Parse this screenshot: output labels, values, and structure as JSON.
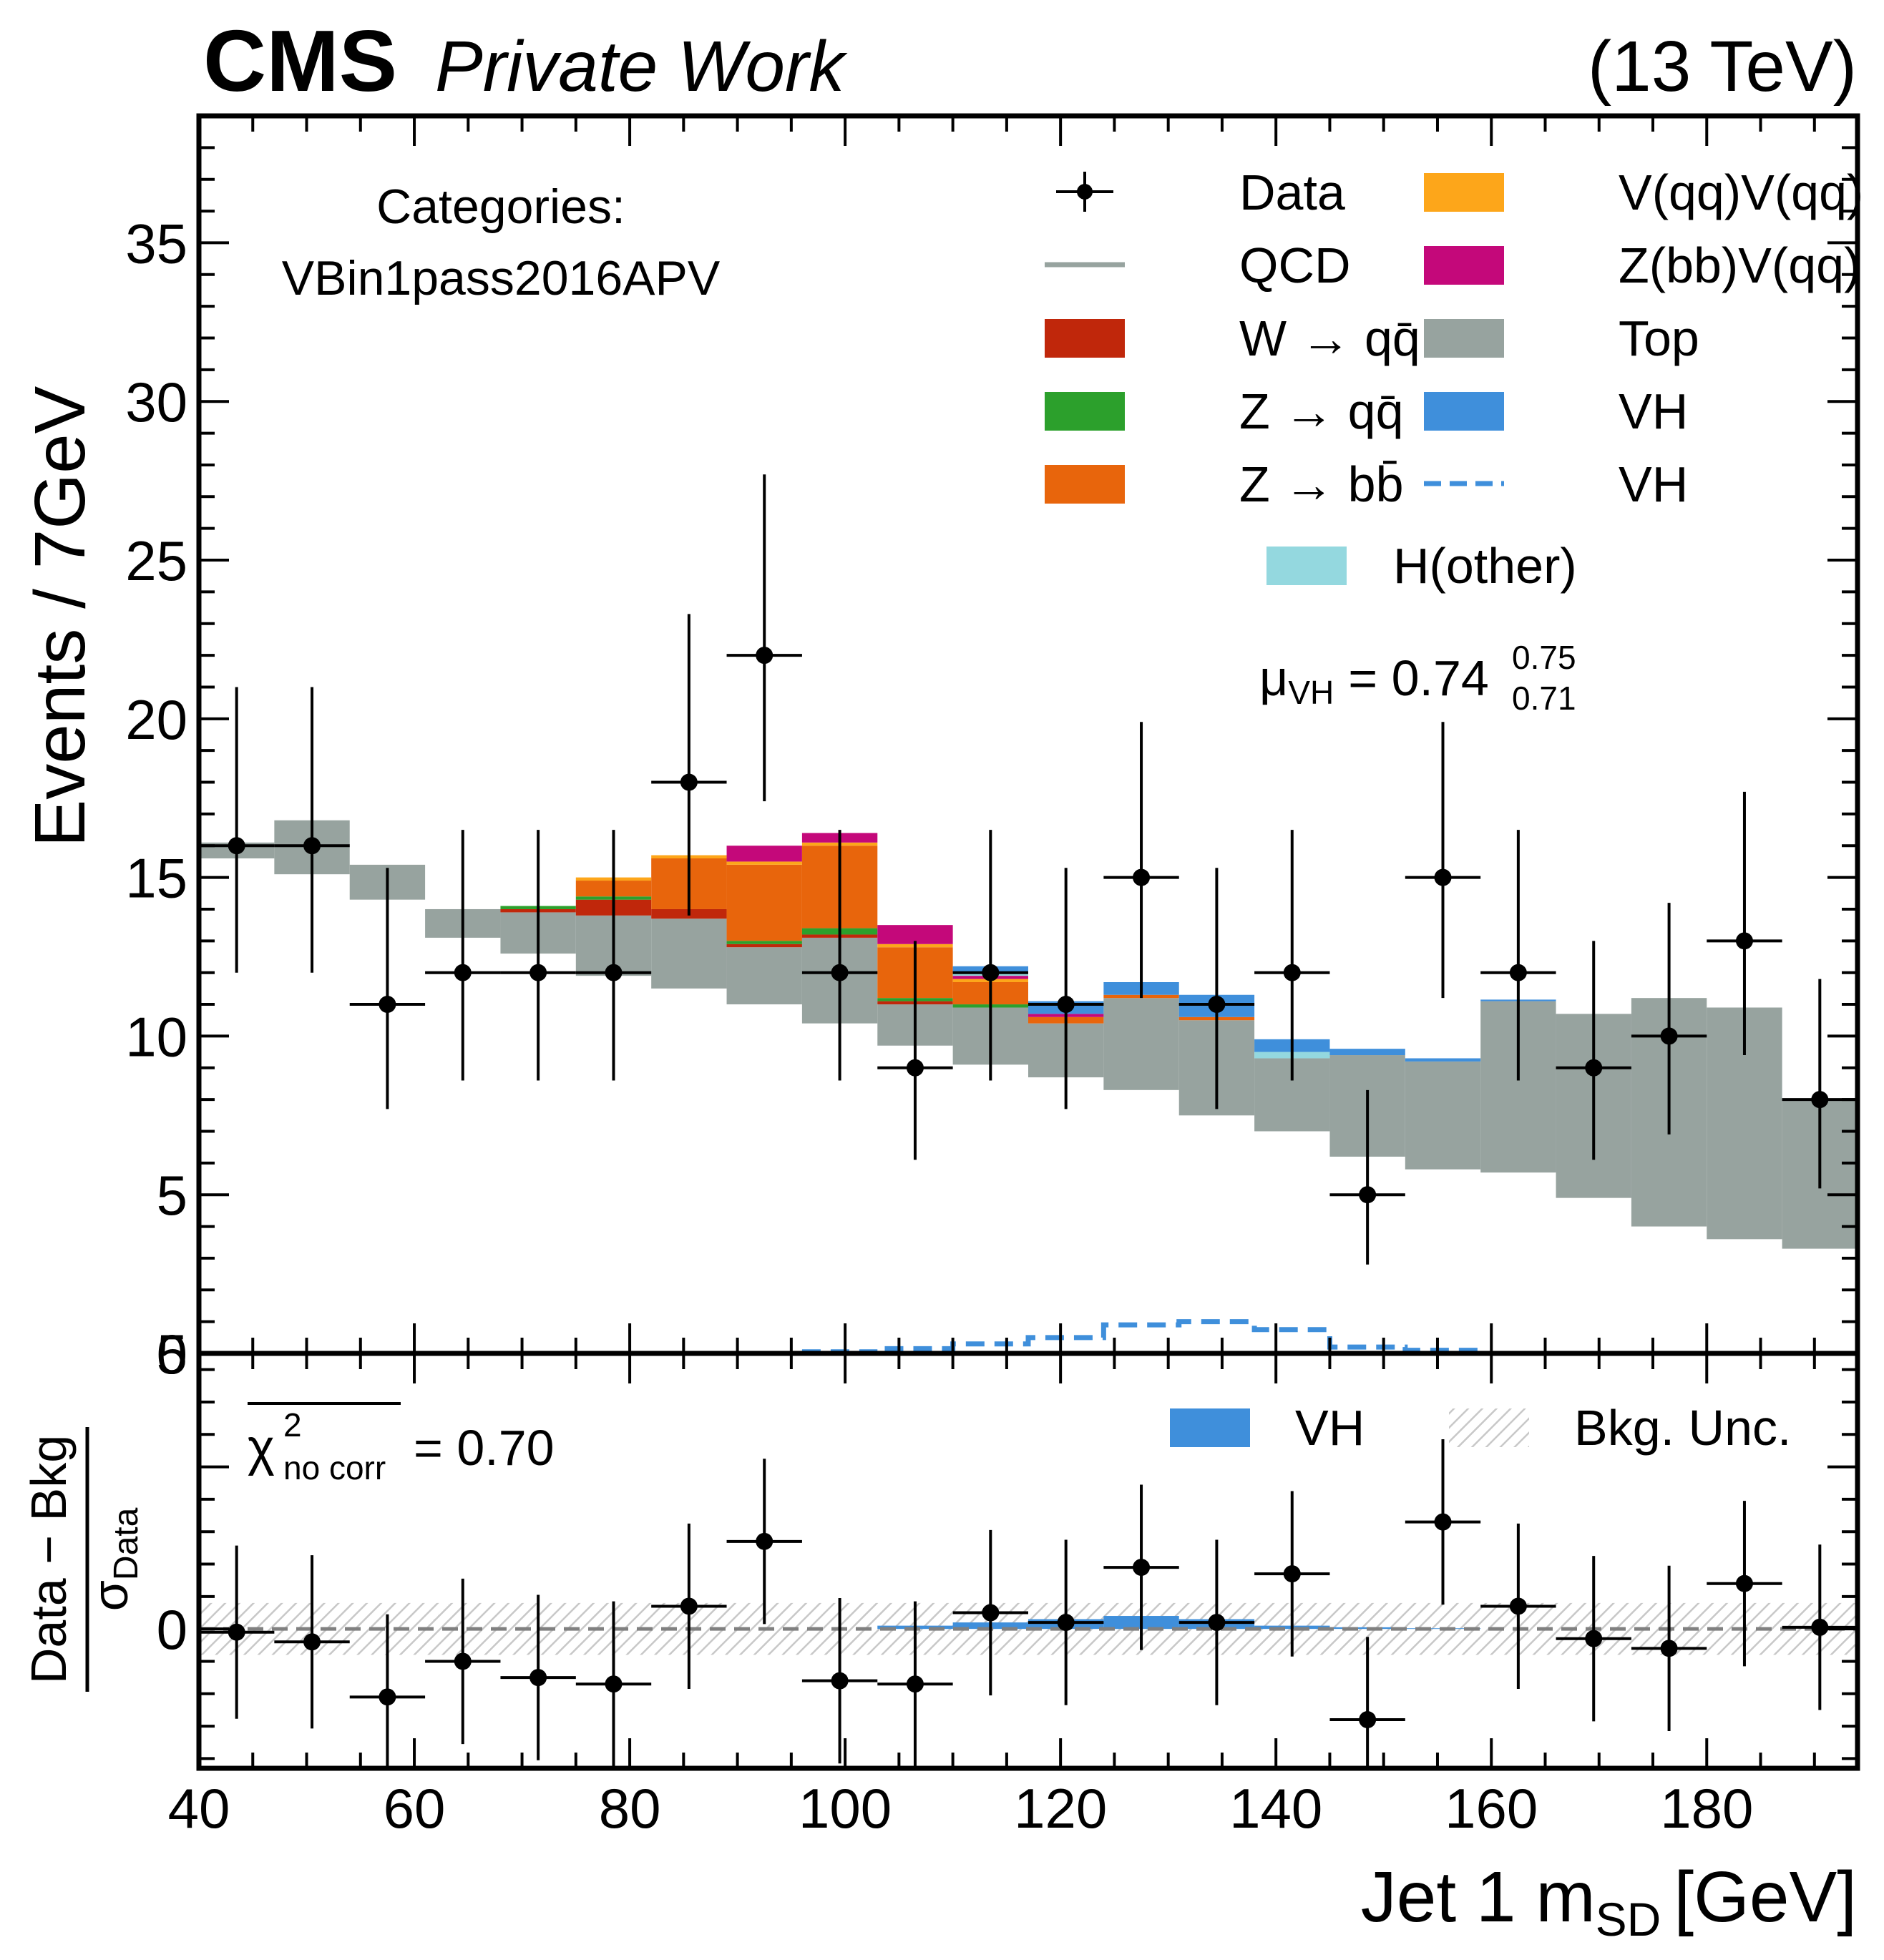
{
  "header": {
    "experiment": "CMS",
    "label": "Private Work",
    "energy": "(13 TeV)"
  },
  "colors": {
    "W_qq": "#c0270b",
    "Z_qq": "#2ca02c",
    "Z_bb": "#e8650c",
    "VqqVqq": "#fda61a",
    "ZbbVqq": "#c4087a",
    "Top": "#97a39f",
    "VH": "#3f8fdb",
    "Hother": "#94d8df",
    "QCD_line": "#97a39f",
    "data": "#000000"
  },
  "chart_data": {
    "type": "bar",
    "x_label": "Jet 1 m",
    "x_label_sub": "SD",
    "x_label_unit": "[GeV]",
    "y_label": "Events / 7GeV",
    "ratio_y_label_num": "Data − Bkg",
    "ratio_y_label_den": "σ",
    "ratio_y_label_den_sub": "Data",
    "xlim": [
      40,
      194
    ],
    "ylim": [
      0,
      39
    ],
    "ratio_ylim": [
      -4.3,
      8.5
    ],
    "x_ticks": [
      40,
      60,
      80,
      100,
      120,
      140,
      160,
      180
    ],
    "y_ticks": [
      0,
      5,
      10,
      15,
      20,
      25,
      30,
      35
    ],
    "ratio_y_ticks": [
      0,
      5
    ],
    "category_title": "Categories:",
    "category_name": "VBin1pass2016APV",
    "mu_label": "μ",
    "mu_sub": "VH",
    "mu_text": "= 0.74",
    "mu_up": "0.75",
    "mu_down": "0.71",
    "chi2_symbol": "χ",
    "chi2_sup": "2",
    "chi2_sub": "no corr",
    "chi2_text": "= 0.70",
    "legend": [
      {
        "key": "data",
        "label": "Data",
        "style": "errorbar"
      },
      {
        "key": "qcd",
        "label": "QCD",
        "style": "line"
      },
      {
        "key": "wqq",
        "label": "W → qq̄",
        "style": "patch"
      },
      {
        "key": "zqq",
        "label": "Z → qq̄",
        "style": "patch"
      },
      {
        "key": "zbb",
        "label": "Z → bb̄",
        "style": "patch"
      },
      {
        "key": "vqqvqq",
        "label": "V(qq)V(qq)",
        "style": "patch"
      },
      {
        "key": "zbbvqq",
        "label": "Z(bb)V(qq)",
        "style": "patch"
      },
      {
        "key": "top",
        "label": "Top",
        "style": "patch"
      },
      {
        "key": "vh",
        "label": "VH",
        "style": "patch"
      },
      {
        "key": "vh_line",
        "label": "VH",
        "style": "dashed"
      },
      {
        "key": "hother",
        "label": "H(other)",
        "style": "patch"
      }
    ],
    "ratio_legend": [
      {
        "key": "vh",
        "label": "VH",
        "style": "patch"
      },
      {
        "key": "bkgunc",
        "label": "Bkg. Unc.",
        "style": "hatch"
      }
    ],
    "bin_edges": [
      40,
      47,
      54,
      61,
      68,
      75,
      82,
      89,
      96,
      103,
      110,
      117,
      124,
      131,
      138,
      145,
      152,
      159,
      166,
      173,
      180,
      187,
      194
    ],
    "top_low": [
      15.6,
      15.1,
      14.3,
      13.1,
      12.6,
      11.9,
      11.5,
      11.0,
      10.4,
      9.7,
      9.1,
      8.7,
      8.3,
      7.5,
      7.0,
      6.2,
      5.8,
      5.7,
      4.9,
      4.0,
      3.6,
      3.3
    ],
    "top_high": [
      16.1,
      16.8,
      15.4,
      14.0,
      13.9,
      13.8,
      13.7,
      12.8,
      13.1,
      11.0,
      10.9,
      10.4,
      11.2,
      10.5,
      9.3,
      9.4,
      9.2,
      11.1,
      10.7,
      11.2,
      10.9,
      8.0
    ],
    "signal_stack": [
      {
        "bin": 4,
        "parts": [
          [
            "W_qq",
            0.1
          ],
          [
            "Z_qq",
            0.1
          ],
          [
            "Z_bb",
            0.0
          ],
          [
            "VqqVqq",
            0.0
          ],
          [
            "ZbbVqq",
            0.0
          ]
        ]
      },
      {
        "bin": 5,
        "parts": [
          [
            "W_qq",
            0.5
          ],
          [
            "Z_qq",
            0.1
          ],
          [
            "Z_bb",
            0.5
          ],
          [
            "VqqVqq",
            0.1
          ],
          [
            "ZbbVqq",
            0.0
          ]
        ]
      },
      {
        "bin": 6,
        "parts": [
          [
            "W_qq",
            0.3
          ],
          [
            "Z_qq",
            0.0
          ],
          [
            "Z_bb",
            1.6
          ],
          [
            "VqqVqq",
            0.1
          ],
          [
            "ZbbVqq",
            0.0
          ]
        ]
      },
      {
        "bin": 7,
        "parts": [
          [
            "W_qq",
            0.1
          ],
          [
            "Z_qq",
            0.1
          ],
          [
            "Z_bb",
            2.4
          ],
          [
            "VqqVqq",
            0.1
          ],
          [
            "ZbbVqq",
            0.5
          ]
        ]
      },
      {
        "bin": 8,
        "parts": [
          [
            "W_qq",
            0.1
          ],
          [
            "Z_qq",
            0.2
          ],
          [
            "Z_bb",
            2.6
          ],
          [
            "VqqVqq",
            0.1
          ],
          [
            "ZbbVqq",
            0.3
          ]
        ]
      },
      {
        "bin": 9,
        "parts": [
          [
            "W_qq",
            0.1
          ],
          [
            "Z_qq",
            0.1
          ],
          [
            "Z_bb",
            1.6
          ],
          [
            "VqqVqq",
            0.1
          ],
          [
            "ZbbVqq",
            0.6
          ]
        ]
      },
      {
        "bin": 10,
        "parts": [
          [
            "W_qq",
            0.0
          ],
          [
            "Z_qq",
            0.1
          ],
          [
            "Z_bb",
            0.7
          ],
          [
            "VqqVqq",
            0.1
          ],
          [
            "ZbbVqq",
            0.1
          ],
          [
            "Hother",
            0.1
          ],
          [
            "VH",
            0.2
          ]
        ]
      },
      {
        "bin": 11,
        "parts": [
          [
            "W_qq",
            0.0
          ],
          [
            "Z_qq",
            0.0
          ],
          [
            "Z_bb",
            0.2
          ],
          [
            "VqqVqq",
            0.0
          ],
          [
            "ZbbVqq",
            0.1
          ],
          [
            "VH",
            0.4
          ]
        ]
      },
      {
        "bin": 12,
        "parts": [
          [
            "Z_bb",
            0.1
          ],
          [
            "ZbbVqq",
            0.0
          ],
          [
            "VH",
            0.4
          ]
        ]
      },
      {
        "bin": 13,
        "parts": [
          [
            "Z_bb",
            0.1
          ],
          [
            "ZbbVqq",
            0.0
          ],
          [
            "VH",
            0.7
          ]
        ]
      },
      {
        "bin": 14,
        "parts": [
          [
            "Hother",
            0.2
          ],
          [
            "VH",
            0.4
          ]
        ]
      },
      {
        "bin": 15,
        "parts": [
          [
            "VH",
            0.2
          ]
        ]
      },
      {
        "bin": 16,
        "parts": [
          [
            "VH",
            0.1
          ]
        ]
      },
      {
        "bin": 17,
        "parts": [
          [
            "VH",
            0.05
          ]
        ]
      }
    ],
    "vh_dashed": [
      0,
      0,
      0,
      0,
      0,
      0,
      0,
      0,
      0.05,
      0.15,
      0.3,
      0.5,
      0.9,
      1.0,
      0.75,
      0.2,
      0.1,
      0,
      0,
      0,
      0,
      0
    ],
    "data_x": [
      43.5,
      50.5,
      57.5,
      64.5,
      71.5,
      78.5,
      85.5,
      92.5,
      99.5,
      106.5,
      113.5,
      120.5,
      127.5,
      134.5,
      141.5,
      148.5,
      155.5,
      162.5,
      169.5,
      176.5,
      183.5,
      190.5
    ],
    "data_y": [
      16,
      16,
      11,
      12,
      12,
      12,
      18,
      22,
      12,
      9,
      12,
      11,
      15,
      11,
      12,
      5,
      15,
      12,
      9,
      10,
      13,
      8
    ],
    "data_err_up": [
      5.0,
      5.0,
      4.3,
      4.5,
      4.5,
      4.5,
      5.3,
      5.7,
      4.5,
      4.0,
      4.5,
      4.3,
      4.9,
      4.3,
      4.5,
      3.3,
      4.9,
      4.5,
      4.0,
      4.2,
      4.7,
      3.8
    ],
    "data_err_down": [
      4.0,
      4.0,
      3.3,
      3.4,
      3.4,
      3.4,
      4.2,
      4.6,
      3.4,
      2.9,
      3.4,
      3.3,
      3.8,
      3.3,
      3.4,
      2.2,
      3.8,
      3.4,
      2.9,
      3.1,
      3.6,
      2.8
    ],
    "ratio_y": [
      -0.1,
      -0.4,
      -2.1,
      -1.0,
      -1.5,
      -1.7,
      0.7,
      2.7,
      -1.6,
      -1.7,
      0.5,
      0.2,
      1.9,
      0.2,
      1.7,
      -2.8,
      3.3,
      0.7,
      -0.3,
      -0.6,
      1.4,
      0.05
    ],
    "ratio_err": [
      2.2,
      2.2,
      2.1,
      2.1,
      2.1,
      2.1,
      2.1,
      2.1,
      2.1,
      2.1,
      2.1,
      2.1,
      2.1,
      2.1,
      2.1,
      2.1,
      2.1,
      2.1,
      2.1,
      2.1,
      2.1,
      2.1
    ],
    "ratio_vh": [
      0,
      0,
      0,
      0,
      0,
      0,
      0,
      0,
      0,
      0.1,
      0.2,
      0.3,
      0.4,
      0.3,
      0.1,
      0.05,
      0.02,
      0,
      0,
      0,
      0,
      0
    ],
    "ratio_unc": 0.8
  }
}
